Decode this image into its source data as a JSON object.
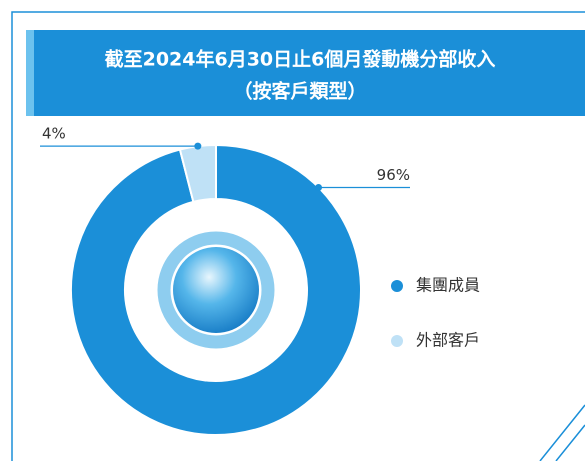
{
  "chart_data": {
    "type": "pie",
    "donut": true,
    "title": "截至2024年6月30日止6個月發動機分部收入",
    "subtitle": "（按客戶類型）",
    "categories": [
      "集團成員",
      "外部客戶"
    ],
    "values": [
      96,
      4
    ],
    "value_labels": [
      "96%",
      "4%"
    ],
    "colors": [
      "#1b8fd8",
      "#bfe1f6"
    ]
  }
}
